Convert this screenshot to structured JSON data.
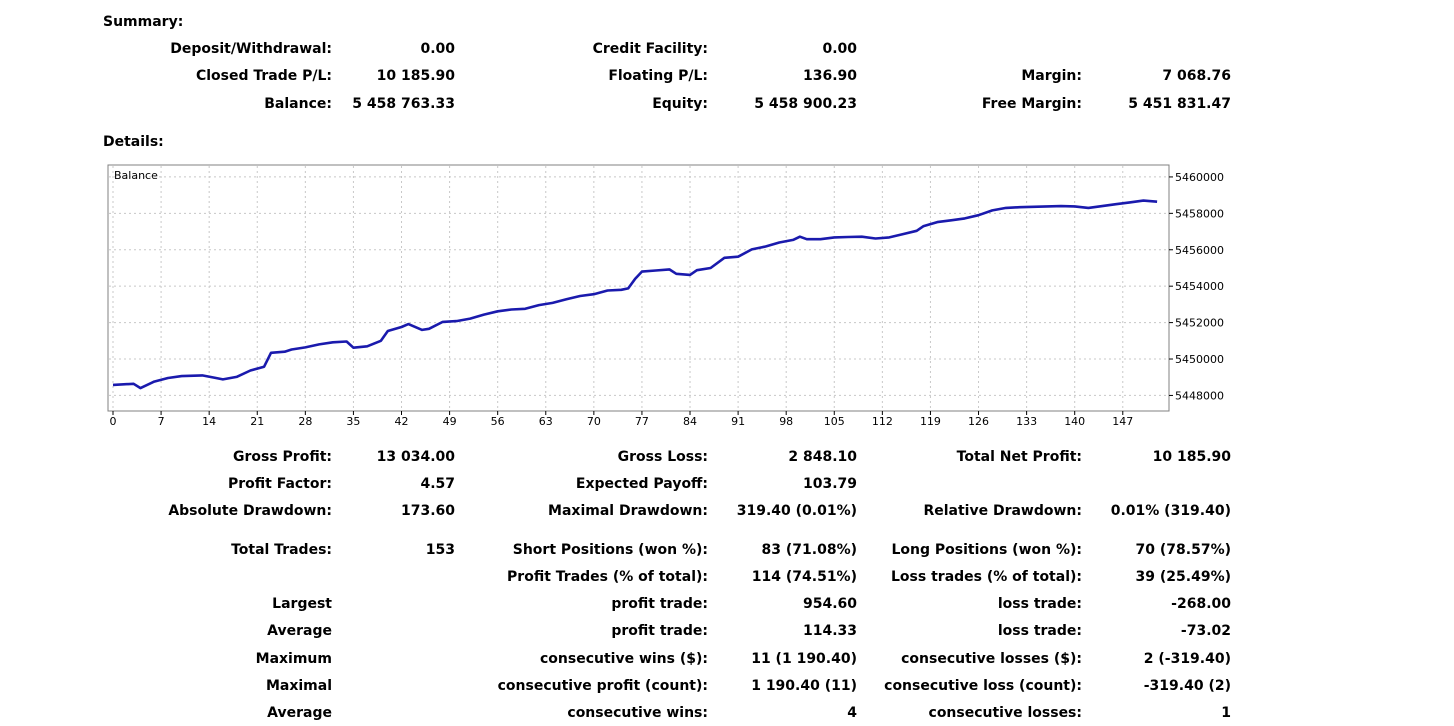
{
  "summary": {
    "title": "Summary:",
    "rows": [
      [
        {
          "label": "Deposit/Withdrawal:",
          "value": "0.00"
        },
        {
          "label": "Credit Facility:",
          "value": "0.00"
        },
        {
          "label": "",
          "value": ""
        }
      ],
      [
        {
          "label": "Closed Trade P/L:",
          "value": "10 185.90"
        },
        {
          "label": "Floating P/L:",
          "value": "136.90"
        },
        {
          "label": "Margin:",
          "value": "7 068.76"
        }
      ],
      [
        {
          "label": "Balance:",
          "value": "5 458 763.33"
        },
        {
          "label": "Equity:",
          "value": "5 458 900.23"
        },
        {
          "label": "Free Margin:",
          "value": "5 451 831.47"
        }
      ]
    ]
  },
  "details": {
    "title": "Details:",
    "rows": [
      [
        {
          "label": "Gross Profit:",
          "value": "13 034.00"
        },
        {
          "label": "Gross Loss:",
          "value": "2 848.10"
        },
        {
          "label": "Total Net Profit:",
          "value": "10 185.90"
        }
      ],
      [
        {
          "label": "Profit Factor:",
          "value": "4.57"
        },
        {
          "label": "Expected Payoff:",
          "value": "103.79"
        },
        {
          "label": "",
          "value": ""
        }
      ],
      [
        {
          "label": "Absolute Drawdown:",
          "value": "173.60"
        },
        {
          "label": "Maximal Drawdown:",
          "value": "319.40 (0.01%)"
        },
        {
          "label": "Relative Drawdown:",
          "value": "0.01% (319.40)"
        }
      ],
      [
        {
          "label": "Total Trades:",
          "value": "153"
        },
        {
          "label": "Short Positions (won %):",
          "value": "83 (71.08%)"
        },
        {
          "label": "Long Positions (won %):",
          "value": "70 (78.57%)"
        }
      ],
      [
        {
          "label": "",
          "value": ""
        },
        {
          "label": "Profit Trades (% of total):",
          "value": "114 (74.51%)"
        },
        {
          "label": "Loss trades (% of total):",
          "value": "39 (25.49%)"
        }
      ],
      [
        {
          "label": "Largest",
          "value": ""
        },
        {
          "label": "profit trade:",
          "value": "954.60"
        },
        {
          "label": "loss trade:",
          "value": "-268.00"
        }
      ],
      [
        {
          "label": "Average",
          "value": ""
        },
        {
          "label": "profit trade:",
          "value": "114.33"
        },
        {
          "label": "loss trade:",
          "value": "-73.02"
        }
      ],
      [
        {
          "label": "Maximum",
          "value": ""
        },
        {
          "label": "consecutive wins ($):",
          "value": "11 (1 190.40)"
        },
        {
          "label": "consecutive losses ($):",
          "value": "2 (-319.40)"
        }
      ],
      [
        {
          "label": "Maximal",
          "value": ""
        },
        {
          "label": "consecutive profit (count):",
          "value": "1 190.40 (11)"
        },
        {
          "label": "consecutive loss (count):",
          "value": "-319.40 (2)"
        }
      ],
      [
        {
          "label": "Average",
          "value": ""
        },
        {
          "label": "consecutive wins:",
          "value": "4"
        },
        {
          "label": "consecutive losses:",
          "value": "1"
        }
      ]
    ]
  },
  "chart_data": {
    "type": "line",
    "title": "Balance",
    "xlabel": "",
    "ylabel": "",
    "xlim": [
      0,
      153
    ],
    "ylim": [
      5447200,
      5460600
    ],
    "x_ticks": [
      0,
      7,
      14,
      21,
      28,
      35,
      42,
      49,
      56,
      63,
      70,
      77,
      84,
      91,
      98,
      105,
      112,
      119,
      126,
      133,
      140,
      147
    ],
    "y_ticks": [
      5448000,
      5450000,
      5452000,
      5454000,
      5456000,
      5458000,
      5460000
    ],
    "grid": true,
    "line_color": "#1a1aad",
    "series": [
      {
        "name": "Balance",
        "x": [
          0,
          3,
          4,
          6,
          8,
          10,
          13,
          15,
          16,
          18,
          20,
          22,
          23,
          25,
          26,
          28,
          30,
          32,
          34,
          35,
          37,
          39,
          40,
          42,
          43,
          45,
          46,
          48,
          50,
          52,
          54,
          56,
          58,
          60,
          62,
          64,
          66,
          68,
          70,
          72,
          74,
          75,
          76,
          77,
          79,
          81,
          82,
          84,
          85,
          87,
          89,
          91,
          93,
          95,
          97,
          99,
          100,
          101,
          103,
          105,
          107,
          109,
          111,
          113,
          115,
          117,
          118,
          120,
          122,
          124,
          126,
          128,
          130,
          132,
          134,
          136,
          138,
          140,
          142,
          144,
          146,
          148,
          150,
          152
        ],
        "y": [
          5448580,
          5448640,
          5448400,
          5448760,
          5448960,
          5449060,
          5449100,
          5448960,
          5448880,
          5449020,
          5449370,
          5449580,
          5450340,
          5450400,
          5450520,
          5450640,
          5450800,
          5450920,
          5450960,
          5450620,
          5450700,
          5451000,
          5451540,
          5451760,
          5451920,
          5451600,
          5451660,
          5452040,
          5452080,
          5452220,
          5452440,
          5452620,
          5452720,
          5452760,
          5452960,
          5453080,
          5453280,
          5453460,
          5453560,
          5453760,
          5453800,
          5453880,
          5454400,
          5454800,
          5454860,
          5454920,
          5454680,
          5454620,
          5454880,
          5455000,
          5455560,
          5455620,
          5456020,
          5456180,
          5456400,
          5456540,
          5456720,
          5456580,
          5456580,
          5456680,
          5456700,
          5456720,
          5456620,
          5456680,
          5456860,
          5457040,
          5457300,
          5457520,
          5457620,
          5457720,
          5457900,
          5458160,
          5458300,
          5458340,
          5458360,
          5458380,
          5458400,
          5458380,
          5458300,
          5458400,
          5458500,
          5458600,
          5458700,
          5458640
        ]
      }
    ]
  }
}
